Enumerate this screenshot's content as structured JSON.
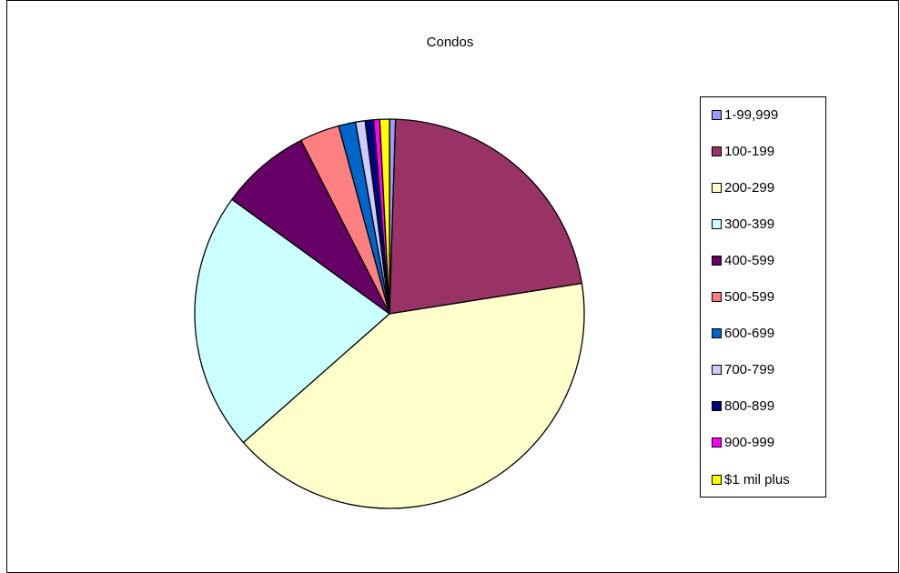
{
  "chart_data": {
    "type": "pie",
    "title": "Condos",
    "legend_position": "right",
    "categories": [
      "1-99,999",
      "100-199",
      "200-299",
      "300-399",
      "400-599",
      "500-599",
      "600-699",
      "700-799",
      "800-899",
      "900-999",
      "$1 mil plus"
    ],
    "values": [
      0.5,
      22,
      41,
      21.5,
      7.5,
      3.3,
      1.4,
      0.8,
      0.7,
      0.5,
      0.8
    ],
    "colors": [
      "#9999ff",
      "#993366",
      "#ffffcc",
      "#ccffff",
      "#660066",
      "#ff8080",
      "#0066cc",
      "#ccccff",
      "#000080",
      "#ff00ff",
      "#ffff00"
    ]
  }
}
